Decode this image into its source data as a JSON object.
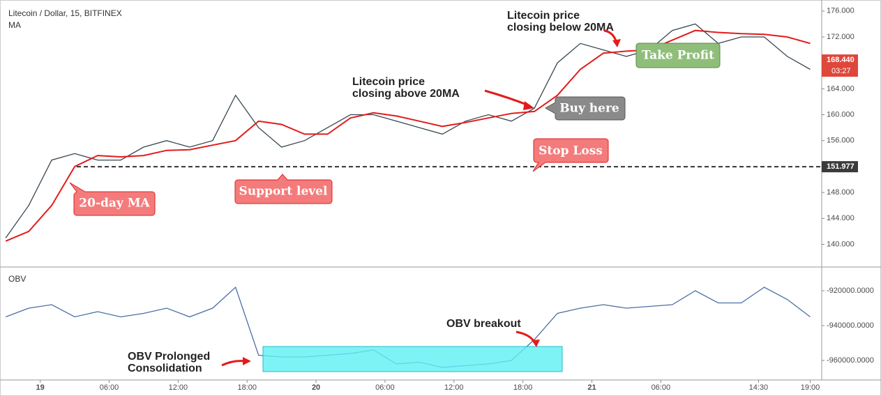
{
  "chart_data": [
    {
      "type": "line",
      "title": "Litecoin / Dollar, 15, BITFINEX",
      "x": [
        -3,
        -1,
        1,
        3,
        5,
        7,
        9,
        11,
        13,
        15,
        17,
        19,
        21,
        23,
        25,
        27,
        29,
        31,
        33,
        35,
        37,
        39,
        41,
        43,
        45,
        47,
        49,
        51,
        53,
        55,
        57,
        59,
        61,
        63,
        65,
        67
      ],
      "xlim": [
        -3.5,
        68
      ],
      "ylim": [
        136.5,
        177.7
      ],
      "yticks": [
        {
          "value": 140,
          "label": "140.000"
        },
        {
          "value": 144,
          "label": "144.000"
        },
        {
          "value": 148,
          "label": "148.000"
        },
        {
          "value": 152,
          "label": "152.000"
        },
        {
          "value": 156,
          "label": "156.000"
        },
        {
          "value": 160,
          "label": "160.000"
        },
        {
          "value": 164,
          "label": "164.000"
        },
        {
          "value": 168,
          "label": "168.000"
        },
        {
          "value": 172,
          "label": "172.000"
        },
        {
          "value": 176,
          "label": "176.000"
        }
      ],
      "series": [
        {
          "color": "#37474f",
          "values": [
            141,
            146,
            153,
            154,
            153,
            153,
            155,
            156,
            155,
            156,
            163,
            158,
            155,
            156,
            158,
            160,
            160,
            159,
            158,
            157,
            159,
            160,
            159,
            161,
            168,
            171,
            170,
            169,
            170,
            173,
            174,
            171,
            172,
            172,
            169,
            167
          ]
        },
        {
          "name": "MA",
          "color": "#e31b1b",
          "values": [
            140.5,
            142,
            146,
            152,
            153.7,
            153.5,
            153.7,
            154.5,
            154.6,
            155.3,
            156,
            159,
            158.5,
            157,
            157,
            159.5,
            160.3,
            159.8,
            159,
            158.2,
            158.8,
            159.5,
            160.2,
            160.5,
            163,
            167,
            169.5,
            169.8,
            170,
            171.5,
            173,
            172.7,
            172.5,
            172.4,
            172,
            171
          ]
        }
      ],
      "last_price": {
        "value": 168.44,
        "label": "168.440"
      },
      "countdown": "03:27",
      "stop_level": {
        "value": 151.977,
        "label": "151.977"
      },
      "annotations": {
        "below_ma": [
          "Litecoin price",
          "closing below 20MA"
        ],
        "take_profit": "Take Profit",
        "above_ma": [
          "Litecoin price",
          "closing above 20MA"
        ],
        "buy_here": "Buy here",
        "stop_loss": "Stop Loss",
        "ma_label": "20-day MA",
        "support": "Support level"
      }
    },
    {
      "type": "line",
      "title": "OBV",
      "x": [
        -3,
        -1,
        1,
        3,
        5,
        7,
        9,
        11,
        13,
        15,
        17,
        19,
        21,
        23,
        25,
        27,
        29,
        31,
        33,
        35,
        37,
        39,
        41,
        43,
        45,
        47,
        49,
        51,
        53,
        55,
        57,
        59,
        61,
        63,
        65,
        67
      ],
      "xlim": [
        -3.5,
        68
      ],
      "xticks": [
        {
          "value": 0,
          "label": "19"
        },
        {
          "value": 6,
          "label": "06:00"
        },
        {
          "value": 12,
          "label": "12:00"
        },
        {
          "value": 18,
          "label": "18:00"
        },
        {
          "value": 24,
          "label": "20"
        },
        {
          "value": 30,
          "label": "06:00"
        },
        {
          "value": 36,
          "label": "12:00"
        },
        {
          "value": 42,
          "label": "18:00"
        },
        {
          "value": 48,
          "label": "21"
        },
        {
          "value": 54,
          "label": "06:00"
        },
        {
          "value": 62.5,
          "label": "14:30"
        },
        {
          "value": 67,
          "label": "19:00"
        }
      ],
      "ylim": [
        -971200,
        -906400
      ],
      "yticks": [
        {
          "value": -960000,
          "label": "-960000.0000"
        },
        {
          "value": -940000,
          "label": "-940000.0000"
        },
        {
          "value": -920000,
          "label": "-920000.0000"
        }
      ],
      "series": [
        {
          "color": "#4a6fa5",
          "values": [
            -935000,
            -930000,
            -928000,
            -935000,
            -932000,
            -935000,
            -933000,
            -930000,
            -935000,
            -930000,
            -918000,
            -957000,
            -958000,
            -958000,
            -957000,
            -956000,
            -954000,
            -962000,
            -961000,
            -964000,
            -963000,
            -962000,
            -960000,
            -948000,
            -933000,
            -930000,
            -928000,
            -930000,
            -929000,
            -928000,
            -920000,
            -927000,
            -927000,
            -918000,
            -925000,
            -935000
          ]
        }
      ],
      "annotations": {
        "breakout": "OBV breakout",
        "consolidation": [
          "OBV Prolonged",
          "Consolidation"
        ]
      }
    }
  ]
}
